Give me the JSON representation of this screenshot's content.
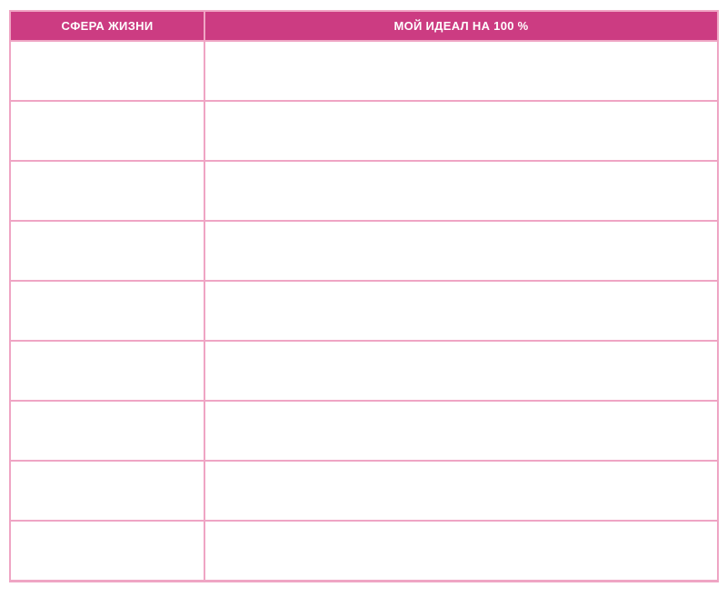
{
  "page": {
    "background": "#ffffff"
  },
  "table": {
    "title": "",
    "columns": [
      {
        "id": "sphere",
        "label": "СФЕРА ЖИЗНИ"
      },
      {
        "id": "ideal",
        "label": "МОЙ ИДЕАЛ НА 100 %"
      }
    ],
    "body_row_count": 9,
    "rows": [
      {
        "sphere": "",
        "ideal": ""
      },
      {
        "sphere": "",
        "ideal": ""
      },
      {
        "sphere": "",
        "ideal": ""
      },
      {
        "sphere": "",
        "ideal": ""
      },
      {
        "sphere": "",
        "ideal": ""
      },
      {
        "sphere": "",
        "ideal": ""
      },
      {
        "sphere": "",
        "ideal": ""
      },
      {
        "sphere": "",
        "ideal": ""
      },
      {
        "sphere": "",
        "ideal": ""
      }
    ],
    "colors": {
      "header_bg": "#cc3c82",
      "header_text": "#ffffff",
      "grid_border": "#efa5c4",
      "row_bg": "#ffffff"
    }
  }
}
